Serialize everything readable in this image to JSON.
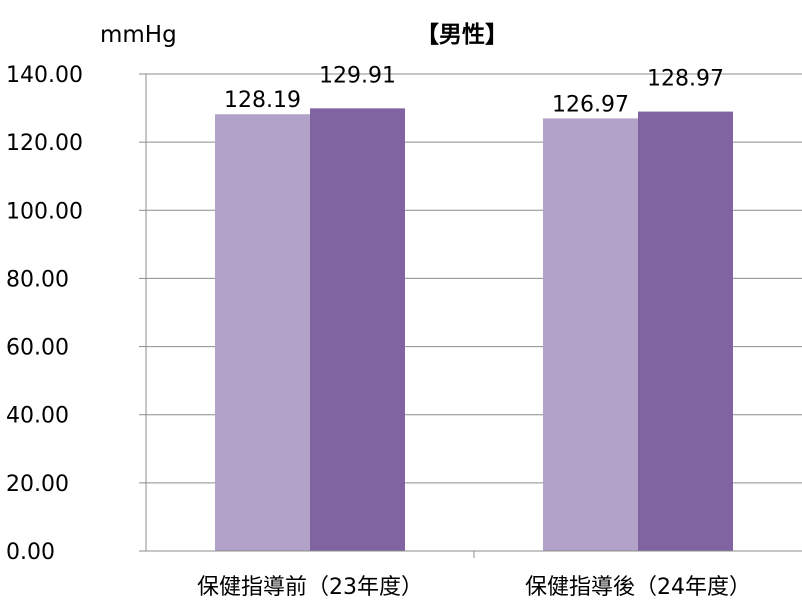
{
  "chart_data": {
    "type": "bar",
    "title": "【男性】",
    "ylabel": "mmHg",
    "xlabel": "",
    "categories": [
      "保健指導前（23年度）",
      "保健指導後（24年度）"
    ],
    "series": [
      {
        "values": [
          128.19,
          126.97
        ],
        "labels": [
          "128.19",
          "126.97"
        ],
        "color": "#b3a2c7"
      },
      {
        "values": [
          129.91,
          128.97
        ],
        "labels": [
          "129.91",
          "128.97"
        ],
        "color": "#8064a2"
      }
    ],
    "ylim": [
      0,
      140
    ],
    "yticks": [
      "0.00",
      "20.00",
      "40.00",
      "60.00",
      "80.00",
      "100.00",
      "120.00",
      "140.00"
    ],
    "grid": true,
    "legend": "none"
  }
}
